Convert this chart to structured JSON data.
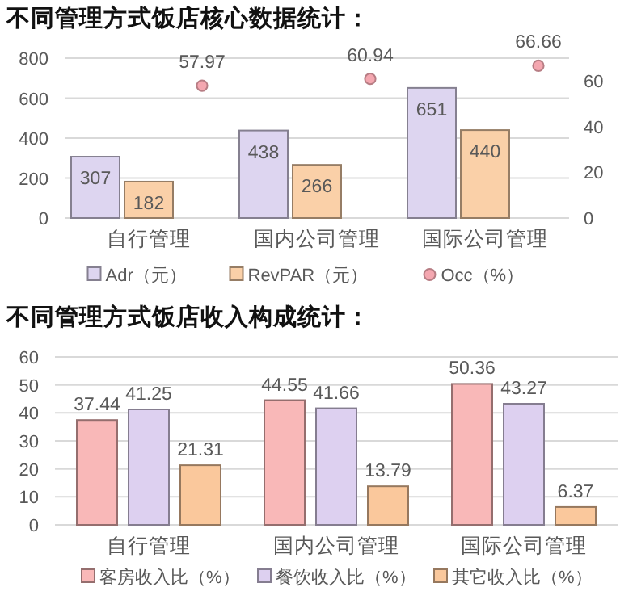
{
  "chart_data": [
    {
      "type": "bar",
      "title": "不同管理方式饭店核心数据统计：",
      "categories": [
        "自行管理",
        "国内公司管理",
        "国际公司管理"
      ],
      "series": [
        {
          "name": "Adr（元）",
          "color": "#ddd5f0",
          "values": [
            307,
            438,
            651
          ]
        },
        {
          "name": "RevPAR（元）",
          "color": "#fad0a8",
          "values": [
            182,
            266,
            440
          ]
        },
        {
          "name": "Occ（%）",
          "type": "scatter",
          "axis": "y2",
          "color": "#f4a7b0",
          "values": [
            57.97,
            60.94,
            66.66
          ]
        }
      ],
      "ylim": [
        0,
        800
      ],
      "yticks": [
        0,
        200,
        400,
        600,
        800
      ],
      "y2lim": [
        0,
        70
      ],
      "y2ticks": [
        0,
        20,
        40,
        60
      ],
      "grid": "y",
      "legend": "bottom",
      "data_labels": true,
      "marker": "circle"
    },
    {
      "type": "bar",
      "title": "不同管理方式饭店收入构成统计：",
      "categories": [
        "自行管理",
        "国内公司管理",
        "国际公司管理"
      ],
      "series": [
        {
          "name": "客房收入比（%）",
          "color": "#f9b8b8",
          "values": [
            37.44,
            44.55,
            50.36
          ]
        },
        {
          "name": "餐饮收入比（%）",
          "color": "#ddd0f0",
          "values": [
            41.25,
            41.66,
            43.27
          ]
        },
        {
          "name": "其它收入比（%）",
          "color": "#fac89c",
          "values": [
            21.31,
            13.79,
            6.37
          ]
        }
      ],
      "ylim": [
        0,
        60
      ],
      "yticks": [
        0,
        10,
        20,
        30,
        40,
        50,
        60
      ],
      "grid": "y",
      "legend": "bottom",
      "data_labels": true
    }
  ]
}
